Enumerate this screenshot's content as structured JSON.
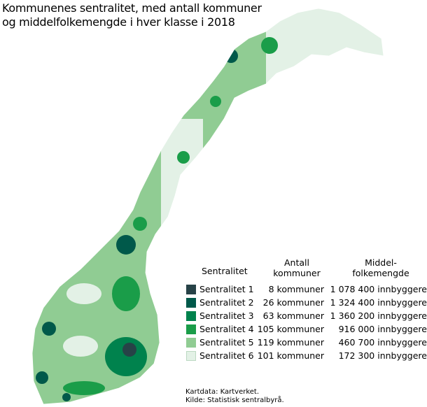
{
  "title_lines": [
    "Kommunenes sentralitet, med antall kommuner",
    "og middelfolkemengde i hver klasse i 2018"
  ],
  "legend": {
    "header_class": "Sentralitet",
    "header_count_1": "Antall",
    "header_count_2": "kommuner",
    "header_pop_1": "Middel-",
    "header_pop_2": "folkemengde",
    "items": [
      {
        "label": "Sentralitet 1",
        "count": "8 kommuner",
        "population": "1 078 400 innbyggere",
        "color": "#274247"
      },
      {
        "label": "Sentralitet 2",
        "count": "26 kommuner",
        "population": "1 324 400 innbyggere",
        "color": "#00594a"
      },
      {
        "label": "Sentralitet 3",
        "count": "63 kommuner",
        "population": "1 360 200 innbyggere",
        "color": "#00824d"
      },
      {
        "label": "Sentralitet 4",
        "count": "105 kommuner",
        "population": "916 000 innbyggere",
        "color": "#1a9d49"
      },
      {
        "label": "Sentralitet 5",
        "count": "119 kommuner",
        "population": "460 700 innbyggere",
        "color": "#90cc93"
      },
      {
        "label": "Sentralitet 6",
        "count": "101 kommuner",
        "population": "172 300 innbyggere",
        "color": "#e3f1e6"
      }
    ]
  },
  "source_lines": [
    "Kartdata: Kartverket.",
    "Kilde: Statistisk sentralbyrå."
  ]
}
